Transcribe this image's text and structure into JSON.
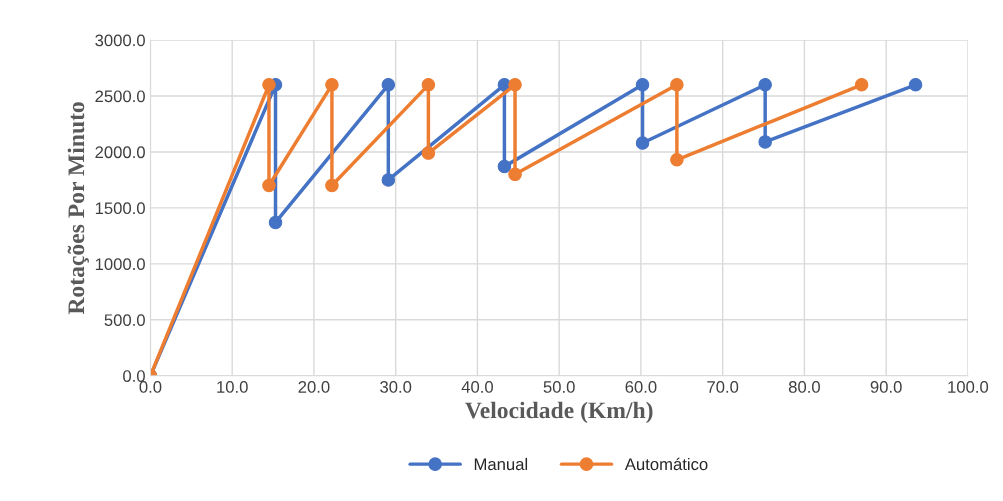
{
  "chart_data": {
    "type": "line",
    "xlabel": "Velocidade (Km/h)",
    "ylabel": "Rotações Por Minuto",
    "series": [
      {
        "name": "Manual",
        "color": "#4472c4",
        "x": [
          0,
          15.3,
          15.3,
          29.1,
          29.1,
          43.3,
          43.3,
          60.2,
          60.2,
          75.2,
          75.2,
          93.6
        ],
        "values": [
          0,
          2600,
          1370,
          2600,
          1750,
          2600,
          1870,
          2600,
          2080,
          2600,
          2090,
          2600
        ]
      },
      {
        "name": "Automático",
        "color": "#ed7d31",
        "x": [
          0,
          14.5,
          14.5,
          22.2,
          22.2,
          34.0,
          34.0,
          44.6,
          44.6,
          64.4,
          64.4,
          87.0
        ],
        "values": [
          0,
          2600,
          1700,
          2600,
          1700,
          2600,
          1990,
          2600,
          1800,
          2600,
          1930,
          2600
        ]
      }
    ],
    "xlim": [
      0,
      100
    ],
    "ylim": [
      0,
      3000
    ],
    "xticks": [
      {
        "value": 0,
        "label": "0.0"
      },
      {
        "value": 10,
        "label": "10.0"
      },
      {
        "value": 20,
        "label": "20.0"
      },
      {
        "value": 30,
        "label": "30.0"
      },
      {
        "value": 40,
        "label": "40.0"
      },
      {
        "value": 50,
        "label": "50.0"
      },
      {
        "value": 60,
        "label": "60.0"
      },
      {
        "value": 70,
        "label": "70.0"
      },
      {
        "value": 80,
        "label": "80.0"
      },
      {
        "value": 90,
        "label": "90.0"
      },
      {
        "value": 100,
        "label": "100.0"
      }
    ],
    "yticks": [
      {
        "value": 0,
        "label": "0.0"
      },
      {
        "value": 500,
        "label": "500.0"
      },
      {
        "value": 1000,
        "label": "1000.0"
      },
      {
        "value": 1500,
        "label": "1500.0"
      },
      {
        "value": 2000,
        "label": "2000.0"
      },
      {
        "value": 2500,
        "label": "2500.0"
      },
      {
        "value": 3000,
        "label": "3000.0"
      }
    ],
    "grid": true,
    "legend": "bottom",
    "marker": "circle",
    "line_style": "solid"
  }
}
